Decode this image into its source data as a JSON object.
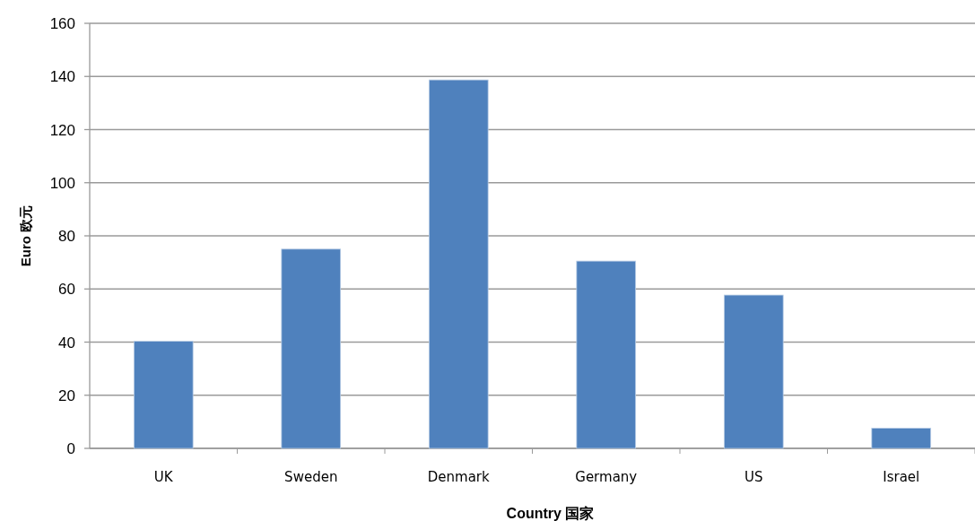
{
  "chart_data": {
    "type": "bar",
    "xlabel": "Country 国家",
    "ylabel": "Euro 欧元",
    "categories": [
      "UK",
      "Sweden",
      "Denmark",
      "Germany",
      "US",
      "Israel"
    ],
    "values": [
      40.3,
      75,
      138.7,
      70.5,
      57.7,
      7.6
    ],
    "color": "#4f81bd",
    "ylim": [
      0,
      160
    ],
    "yticks": [
      0,
      20,
      40,
      60,
      80,
      100,
      120,
      140,
      160
    ],
    "grid": "y"
  }
}
